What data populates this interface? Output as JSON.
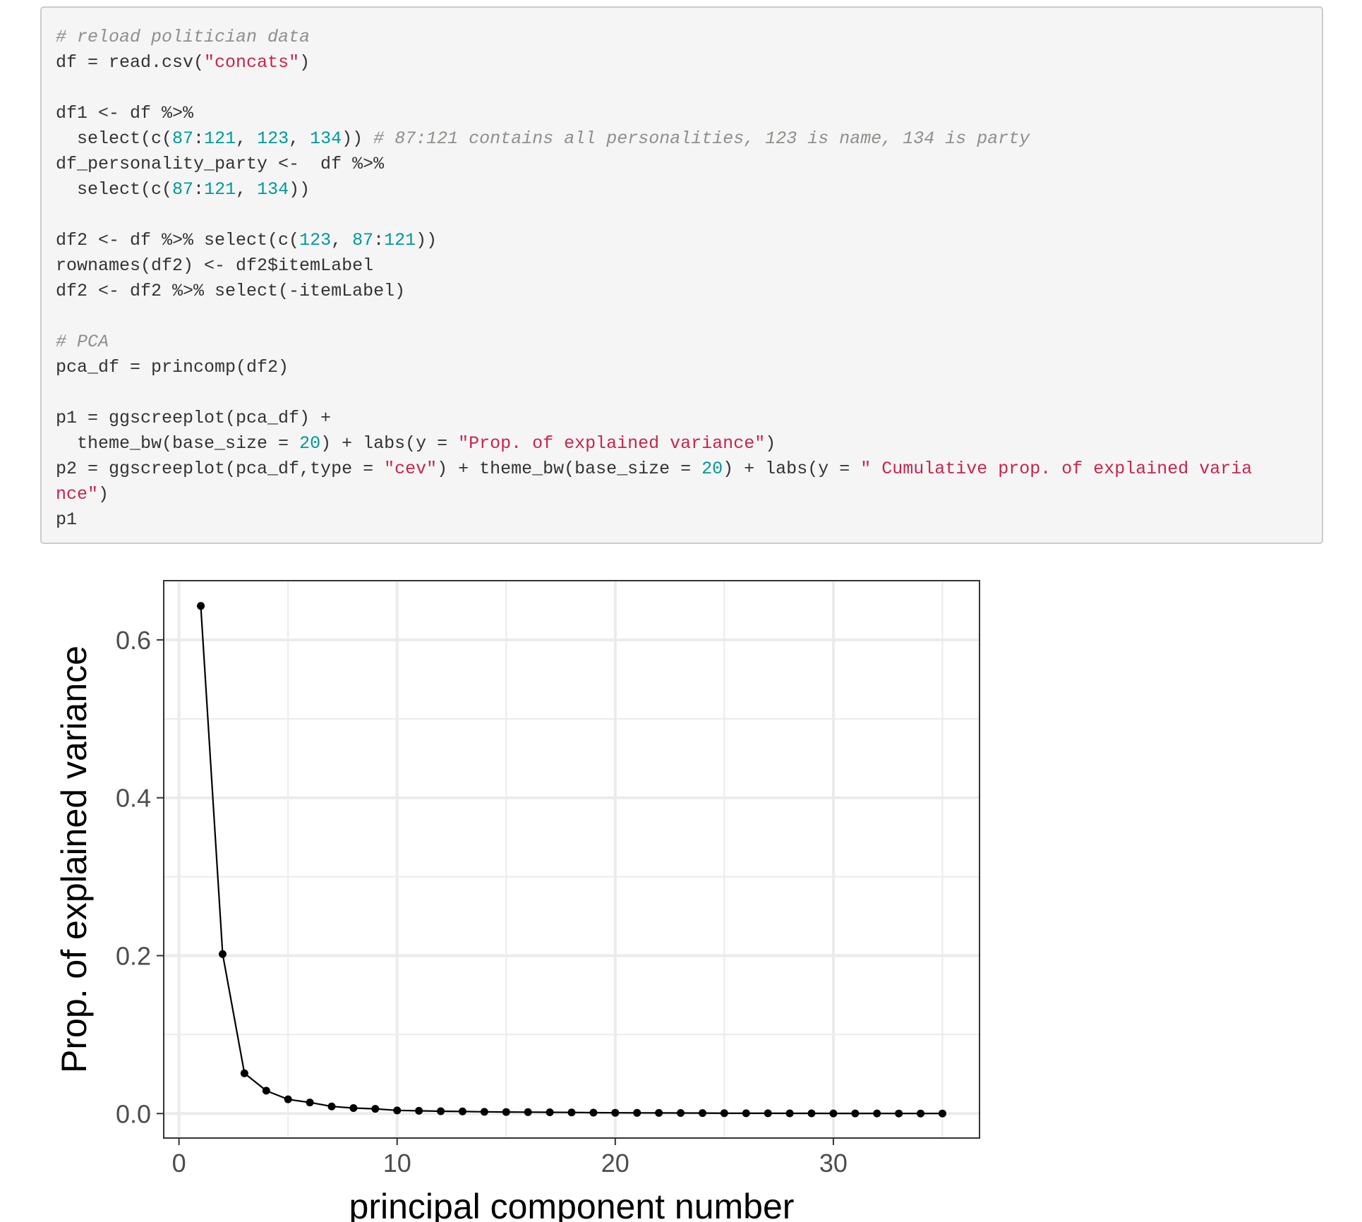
{
  "code": {
    "lines": [
      [
        {
          "t": "comment",
          "v": "# reload politician data"
        }
      ],
      [
        {
          "t": "code",
          "v": "df = read.csv("
        },
        {
          "t": "string",
          "v": "\"concats\""
        },
        {
          "t": "code",
          "v": ")"
        }
      ],
      [],
      [
        {
          "t": "code",
          "v": "df1 <- df %>%"
        }
      ],
      [
        {
          "t": "code",
          "v": "  select(c("
        },
        {
          "t": "number",
          "v": "87"
        },
        {
          "t": "code",
          "v": ":"
        },
        {
          "t": "number",
          "v": "121"
        },
        {
          "t": "code",
          "v": ", "
        },
        {
          "t": "number",
          "v": "123"
        },
        {
          "t": "code",
          "v": ", "
        },
        {
          "t": "number",
          "v": "134"
        },
        {
          "t": "code",
          "v": ")) "
        },
        {
          "t": "comment",
          "v": "# 87:121 contains all personalities, 123 is name, 134 is party"
        }
      ],
      [
        {
          "t": "code",
          "v": "df_personality_party <-  df %>%"
        }
      ],
      [
        {
          "t": "code",
          "v": "  select(c("
        },
        {
          "t": "number",
          "v": "87"
        },
        {
          "t": "code",
          "v": ":"
        },
        {
          "t": "number",
          "v": "121"
        },
        {
          "t": "code",
          "v": ", "
        },
        {
          "t": "number",
          "v": "134"
        },
        {
          "t": "code",
          "v": "))"
        }
      ],
      [],
      [
        {
          "t": "code",
          "v": "df2 <- df %>% select(c("
        },
        {
          "t": "number",
          "v": "123"
        },
        {
          "t": "code",
          "v": ", "
        },
        {
          "t": "number",
          "v": "87"
        },
        {
          "t": "code",
          "v": ":"
        },
        {
          "t": "number",
          "v": "121"
        },
        {
          "t": "code",
          "v": "))"
        }
      ],
      [
        {
          "t": "code",
          "v": "rownames(df2) <- df2$itemLabel"
        }
      ],
      [
        {
          "t": "code",
          "v": "df2 <- df2 %>% select(-itemLabel)"
        }
      ],
      [],
      [
        {
          "t": "comment",
          "v": "# PCA"
        }
      ],
      [
        {
          "t": "code",
          "v": "pca_df = princomp(df2)"
        }
      ],
      [],
      [
        {
          "t": "code",
          "v": "p1 = ggscreeplot(pca_df) +"
        }
      ],
      [
        {
          "t": "code",
          "v": "  theme_bw(base_size = "
        },
        {
          "t": "number",
          "v": "20"
        },
        {
          "t": "code",
          "v": ") + labs(y = "
        },
        {
          "t": "string",
          "v": "\"Prop. of explained variance\""
        },
        {
          "t": "code",
          "v": ")"
        }
      ],
      [
        {
          "t": "code",
          "v": "p2 = ggscreeplot(pca_df,type = "
        },
        {
          "t": "string",
          "v": "\"cev\""
        },
        {
          "t": "code",
          "v": ") + theme_bw(base_size = "
        },
        {
          "t": "number",
          "v": "20"
        },
        {
          "t": "code",
          "v": ") + labs(y = "
        },
        {
          "t": "string",
          "v": "\" Cumulative prop. of explained varia"
        }
      ],
      [
        {
          "t": "string",
          "v": "nce\""
        },
        {
          "t": "code",
          "v": ")"
        }
      ],
      [
        {
          "t": "code",
          "v": "p1"
        }
      ]
    ]
  },
  "chart_data": {
    "type": "line",
    "xlabel": "principal component number",
    "ylabel": "Prop. of explained variance",
    "xlim": [
      -0.7,
      36.7
    ],
    "ylim": [
      -0.031,
      0.675
    ],
    "x_ticks": [
      0,
      10,
      20,
      30
    ],
    "x_tick_labels": [
      "0",
      "10",
      "20",
      "30"
    ],
    "x_minor_ticks": [
      5,
      15,
      25,
      35
    ],
    "y_ticks": [
      0.0,
      0.2,
      0.4,
      0.6
    ],
    "y_tick_labels": [
      "0.0",
      "0.2",
      "0.4",
      "0.6"
    ],
    "y_minor_ticks": [
      0.1,
      0.3,
      0.5
    ],
    "grid": true,
    "series": [
      {
        "x": [
          1,
          2,
          3,
          4,
          5,
          6,
          7,
          8,
          9,
          10,
          11,
          12,
          13,
          14,
          15,
          16,
          17,
          18,
          19,
          20,
          21,
          22,
          23,
          24,
          25,
          26,
          27,
          28,
          29,
          30,
          31,
          32,
          33,
          34,
          35
        ],
        "values": [
          0.643,
          0.202,
          0.051,
          0.029,
          0.018,
          0.014,
          0.009,
          0.007,
          0.006,
          0.004,
          0.0035,
          0.003,
          0.0027,
          0.0022,
          0.002,
          0.0018,
          0.0016,
          0.0014,
          0.0012,
          0.001,
          0.0009,
          0.0008,
          0.0007,
          0.0006,
          0.0005,
          0.0004,
          0.0004,
          0.0003,
          0.0003,
          0.0002,
          0.0002,
          0.0002,
          0.0001,
          0.0001,
          0.0001
        ]
      }
    ]
  }
}
